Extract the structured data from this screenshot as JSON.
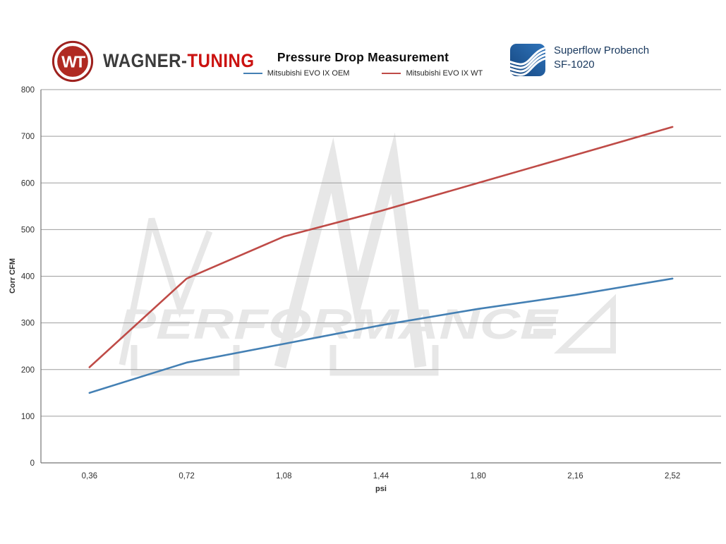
{
  "header": {
    "wagner_logo": {
      "monogram": "WT",
      "brand_dark": "WAGNER-",
      "brand_red": "TUNING"
    },
    "superflow_logo": {
      "line1": "Superflow Probench",
      "line2": "SF-1020"
    }
  },
  "watermark": {
    "text": "PERFORMANCE"
  },
  "chart_data": {
    "type": "line",
    "title": "Pressure Drop Measurement",
    "xlabel": "psi",
    "ylabel": "Corr CFM",
    "categories": [
      "0,36",
      "0,72",
      "1,08",
      "1,44",
      "1,80",
      "2,16",
      "2,52"
    ],
    "x_values": [
      0.36,
      0.72,
      1.08,
      1.44,
      1.8,
      2.16,
      2.52
    ],
    "ylim": [
      0,
      800
    ],
    "yticks": [
      0,
      100,
      200,
      300,
      400,
      500,
      600,
      700,
      800
    ],
    "grid": true,
    "legend_position": "top-center",
    "series": [
      {
        "name": "Mitsubishi EVO IX OEM",
        "color": "#4480b4",
        "values": [
          150,
          215,
          255,
          295,
          330,
          360,
          395
        ]
      },
      {
        "name": "Mitsubishi EVO IX WT",
        "color": "#bf4b47",
        "values": [
          205,
          395,
          485,
          540,
          600,
          660,
          720
        ]
      }
    ]
  },
  "theme": {
    "grid": "#9e9e9e",
    "axis": "#767676",
    "tick-text": "#2f2f2f",
    "title-text": "#0d0d0d",
    "legend-text": "#262626",
    "watermark": "#e6e6e6",
    "superflow-text": "#17375d",
    "sf-blue-dark": "#15467f",
    "sf-blue-light": "#2f74bb",
    "wagner-dark": "#3b3b3b",
    "wagner-red": "#cb1210",
    "badge-outer": "#9e211e",
    "badge-inner": "#b02a22"
  }
}
